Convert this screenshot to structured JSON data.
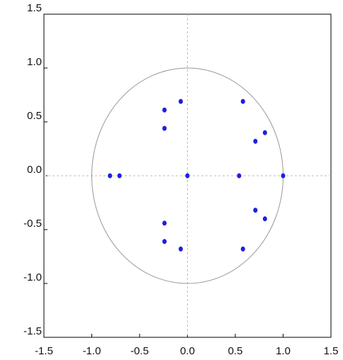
{
  "chart_data": {
    "type": "scatter",
    "x": [
      -0.81,
      -0.71,
      0.0,
      0.54,
      1.0,
      -0.24,
      -0.24,
      -0.07,
      0.58,
      0.81,
      0.71,
      -0.24,
      -0.24,
      -0.07,
      0.58,
      0.81,
      0.71
    ],
    "values": [
      0,
      0,
      0,
      0,
      0,
      0.61,
      0.44,
      0.69,
      0.69,
      0.4,
      0.32,
      -0.61,
      -0.44,
      -0.68,
      -0.68,
      -0.4,
      -0.32
    ],
    "color": "#1f1fe0",
    "xlim": [
      -1.5,
      1.5
    ],
    "ylim": [
      -1.5,
      1.5
    ],
    "xticks": [
      -1.5,
      {
        "value": -1.0,
        "label": "-1.0"
      },
      -0.5,
      {
        "value": 0.0,
        "label": "0.0"
      },
      0.5,
      {
        "value": 1.0,
        "label": "1.0"
      },
      1.5
    ],
    "yticks": [
      -1.5,
      {
        "value": -1.0,
        "label": "-1.0"
      },
      -0.5,
      {
        "value": 0.0,
        "label": "0.0"
      },
      0.5,
      {
        "value": 1.0,
        "label": "1.0"
      },
      1.5
    ],
    "unit_circle": true,
    "zero_lines": true
  }
}
